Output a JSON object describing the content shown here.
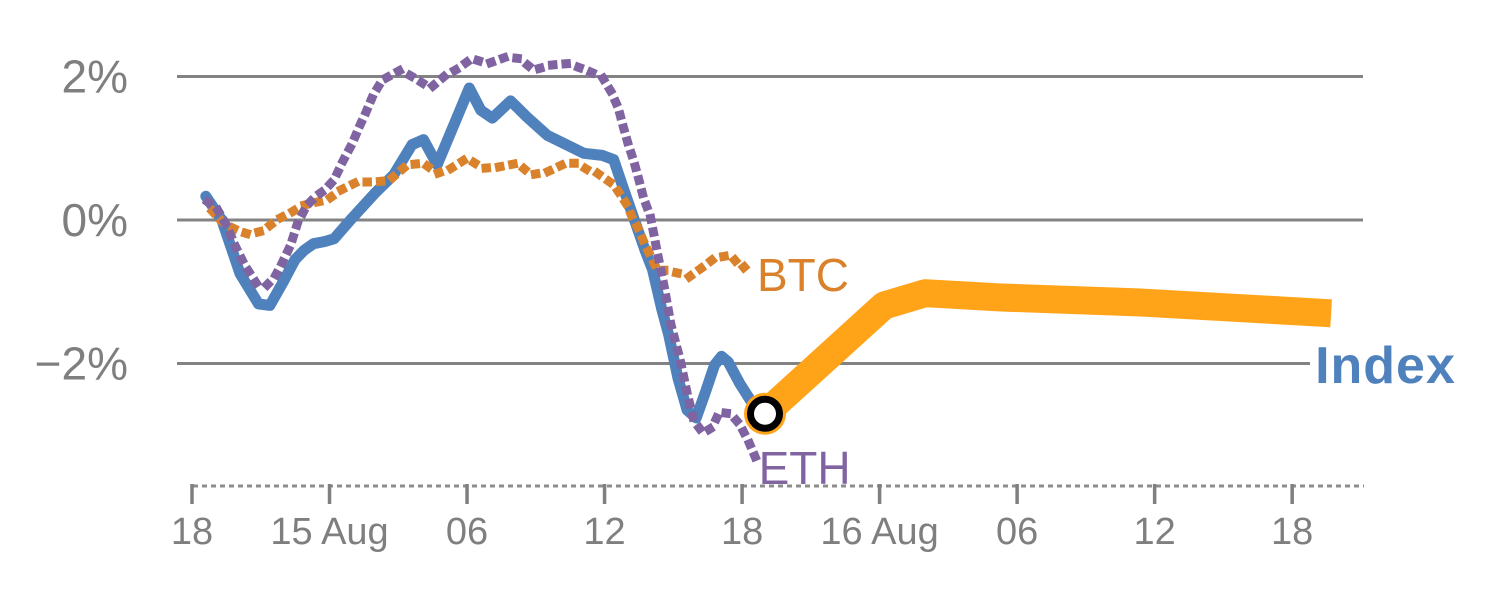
{
  "chart_data": {
    "type": "line",
    "title": "",
    "x_axis": {
      "unit": "hours after first tick (18:00 of day before 15 Aug)",
      "range_hours": [
        0,
        51.5
      ],
      "ticks": [
        {
          "t": 0,
          "label": "18"
        },
        {
          "t": 6,
          "label": "15 Aug"
        },
        {
          "t": 12,
          "label": "06"
        },
        {
          "t": 18,
          "label": "12"
        },
        {
          "t": 24,
          "label": "18"
        },
        {
          "t": 30,
          "label": "16 Aug"
        },
        {
          "t": 36,
          "label": "06"
        },
        {
          "t": 42,
          "label": "12"
        },
        {
          "t": 48,
          "label": "18"
        }
      ],
      "axis_style": "dashed"
    },
    "y_axis": {
      "unit": "percent return",
      "range": [
        -3.9,
        2.6
      ],
      "ticks": [
        {
          "value": 2,
          "label": "2%"
        },
        {
          "value": 0,
          "label": "0%"
        },
        {
          "value": -2,
          "label": "−2%"
        }
      ],
      "grid": true
    },
    "colors": {
      "index_blue": "#4f81bd",
      "btc_orange": "#d9822b",
      "eth_purple": "#8064a2",
      "forecast_amber": "#ffa318",
      "grid_gray": "#838383",
      "tick_label_gray": "#7f7f7f",
      "marker_ring": "#000000",
      "marker_fill": "#ffffff",
      "background": "#ffffff"
    },
    "series": [
      {
        "id": "index",
        "name": "Index",
        "style": "solid",
        "color": "#4f81bd",
        "points": [
          [
            0.6,
            0.33
          ],
          [
            1.3,
            0.0
          ],
          [
            2.1,
            -0.75
          ],
          [
            2.9,
            -1.17
          ],
          [
            3.4,
            -1.19
          ],
          [
            4.0,
            -0.85
          ],
          [
            4.5,
            -0.55
          ],
          [
            4.9,
            -0.42
          ],
          [
            5.3,
            -0.33
          ],
          [
            5.8,
            -0.3
          ],
          [
            6.2,
            -0.26
          ],
          [
            7.0,
            0.03
          ],
          [
            8.0,
            0.38
          ],
          [
            8.8,
            0.63
          ],
          [
            9.6,
            1.05
          ],
          [
            10.1,
            1.12
          ],
          [
            10.7,
            0.77
          ],
          [
            12.1,
            1.84
          ],
          [
            12.6,
            1.53
          ],
          [
            13.1,
            1.42
          ],
          [
            13.9,
            1.66
          ],
          [
            14.6,
            1.44
          ],
          [
            15.5,
            1.18
          ],
          [
            16.4,
            1.04
          ],
          [
            17.1,
            0.93
          ],
          [
            17.9,
            0.9
          ],
          [
            18.4,
            0.84
          ],
          [
            18.8,
            0.46
          ],
          [
            19.3,
            0.0
          ],
          [
            19.8,
            -0.45
          ],
          [
            20.1,
            -0.7
          ],
          [
            20.5,
            -1.25
          ],
          [
            20.8,
            -1.6
          ],
          [
            21.2,
            -2.2
          ],
          [
            21.6,
            -2.65
          ],
          [
            22.0,
            -2.76
          ],
          [
            22.4,
            -2.4
          ],
          [
            22.8,
            -2.02
          ],
          [
            23.1,
            -1.9
          ],
          [
            23.4,
            -1.98
          ],
          [
            23.9,
            -2.28
          ],
          [
            24.4,
            -2.53
          ],
          [
            25.0,
            -2.7
          ]
        ]
      },
      {
        "id": "btc",
        "name": "BTC",
        "style": "dotted",
        "color": "#d9822b",
        "points": [
          [
            0.9,
            0.12
          ],
          [
            1.3,
            -0.02
          ],
          [
            1.7,
            -0.1
          ],
          [
            2.1,
            -0.16
          ],
          [
            2.5,
            -0.2
          ],
          [
            3.1,
            -0.15
          ],
          [
            3.5,
            -0.05
          ],
          [
            3.8,
            0.02
          ],
          [
            4.4,
            0.12
          ],
          [
            4.8,
            0.2
          ],
          [
            5.3,
            0.24
          ],
          [
            5.9,
            0.28
          ],
          [
            6.5,
            0.42
          ],
          [
            7.2,
            0.53
          ],
          [
            7.9,
            0.53
          ],
          [
            8.6,
            0.55
          ],
          [
            9.4,
            0.77
          ],
          [
            10.1,
            0.79
          ],
          [
            10.7,
            0.65
          ],
          [
            11.3,
            0.72
          ],
          [
            12.0,
            0.86
          ],
          [
            12.7,
            0.72
          ],
          [
            13.4,
            0.74
          ],
          [
            14.2,
            0.79
          ],
          [
            14.8,
            0.63
          ],
          [
            15.5,
            0.67
          ],
          [
            16.3,
            0.79
          ],
          [
            16.8,
            0.79
          ],
          [
            17.4,
            0.67
          ],
          [
            17.7,
            0.65
          ],
          [
            18.4,
            0.49
          ],
          [
            18.7,
            0.35
          ],
          [
            19.0,
            0.2
          ],
          [
            19.2,
            0.04
          ],
          [
            19.5,
            -0.14
          ],
          [
            19.8,
            -0.37
          ],
          [
            20.1,
            -0.56
          ],
          [
            20.3,
            -0.7
          ],
          [
            20.6,
            -0.7
          ],
          [
            21.2,
            -0.74
          ],
          [
            21.7,
            -0.79
          ],
          [
            22.4,
            -0.63
          ],
          [
            22.8,
            -0.53
          ],
          [
            23.5,
            -0.49
          ],
          [
            24.0,
            -0.68
          ],
          [
            24.3,
            -0.6
          ]
        ]
      },
      {
        "id": "eth",
        "name": "ETH",
        "style": "dotted",
        "color": "#8064a2",
        "points": [
          [
            0.7,
            0.25
          ],
          [
            1.1,
            0.15
          ],
          [
            1.5,
            -0.07
          ],
          [
            1.9,
            -0.37
          ],
          [
            2.3,
            -0.63
          ],
          [
            2.8,
            -0.88
          ],
          [
            3.2,
            -0.93
          ],
          [
            3.6,
            -0.8
          ],
          [
            3.9,
            -0.62
          ],
          [
            4.3,
            -0.35
          ],
          [
            4.6,
            -0.05
          ],
          [
            5.0,
            0.2
          ],
          [
            5.4,
            0.33
          ],
          [
            5.8,
            0.42
          ],
          [
            6.2,
            0.56
          ],
          [
            6.6,
            0.83
          ],
          [
            7.0,
            1.07
          ],
          [
            7.3,
            1.3
          ],
          [
            7.6,
            1.51
          ],
          [
            7.9,
            1.74
          ],
          [
            8.3,
            1.95
          ],
          [
            9.1,
            2.09
          ],
          [
            9.7,
            1.98
          ],
          [
            10.4,
            1.84
          ],
          [
            11.0,
            2.0
          ],
          [
            11.6,
            2.11
          ],
          [
            12.2,
            2.25
          ],
          [
            12.9,
            2.18
          ],
          [
            13.7,
            2.27
          ],
          [
            14.3,
            2.25
          ],
          [
            14.9,
            2.09
          ],
          [
            15.7,
            2.16
          ],
          [
            16.4,
            2.18
          ],
          [
            17.2,
            2.09
          ],
          [
            17.9,
            1.99
          ],
          [
            18.3,
            1.78
          ],
          [
            18.6,
            1.56
          ],
          [
            18.8,
            1.32
          ],
          [
            19.0,
            1.09
          ],
          [
            19.3,
            0.79
          ],
          [
            19.5,
            0.56
          ],
          [
            19.7,
            0.31
          ],
          [
            20.0,
            0.05
          ],
          [
            20.3,
            -0.45
          ],
          [
            20.6,
            -0.93
          ],
          [
            20.9,
            -1.46
          ],
          [
            21.3,
            -1.95
          ],
          [
            21.6,
            -2.41
          ],
          [
            21.9,
            -2.8
          ],
          [
            22.3,
            -2.97
          ],
          [
            22.7,
            -2.89
          ],
          [
            23.0,
            -2.68
          ],
          [
            23.5,
            -2.7
          ],
          [
            23.9,
            -2.85
          ],
          [
            24.3,
            -3.1
          ],
          [
            24.7,
            -3.4
          ]
        ]
      },
      {
        "id": "index_forecast",
        "name": "",
        "style": "thick",
        "color": "#ffa318",
        "points": [
          [
            25.0,
            -2.7
          ],
          [
            30.2,
            -1.19
          ],
          [
            32.0,
            -1.02
          ],
          [
            35.3,
            -1.08
          ],
          [
            41.4,
            -1.15
          ],
          [
            49.7,
            -1.3
          ]
        ]
      }
    ],
    "marker": {
      "t": 25.0,
      "v": -2.7,
      "shape": "open-circle",
      "halo_color": "#ffa318",
      "ring_color": "#000000",
      "fill": "#ffffff"
    },
    "labels": [
      {
        "for": "btc",
        "text": "BTC",
        "color": "#d9822b",
        "t": 24.65,
        "v": -0.77,
        "bold": false
      },
      {
        "for": "eth",
        "text": "ETH",
        "color": "#8064a2",
        "t": 24.72,
        "v": -3.46,
        "bold": false
      },
      {
        "for": "index",
        "text": "Index",
        "color": "#4f81bd",
        "t": 49.0,
        "v": -2.03,
        "bold": true
      }
    ]
  }
}
